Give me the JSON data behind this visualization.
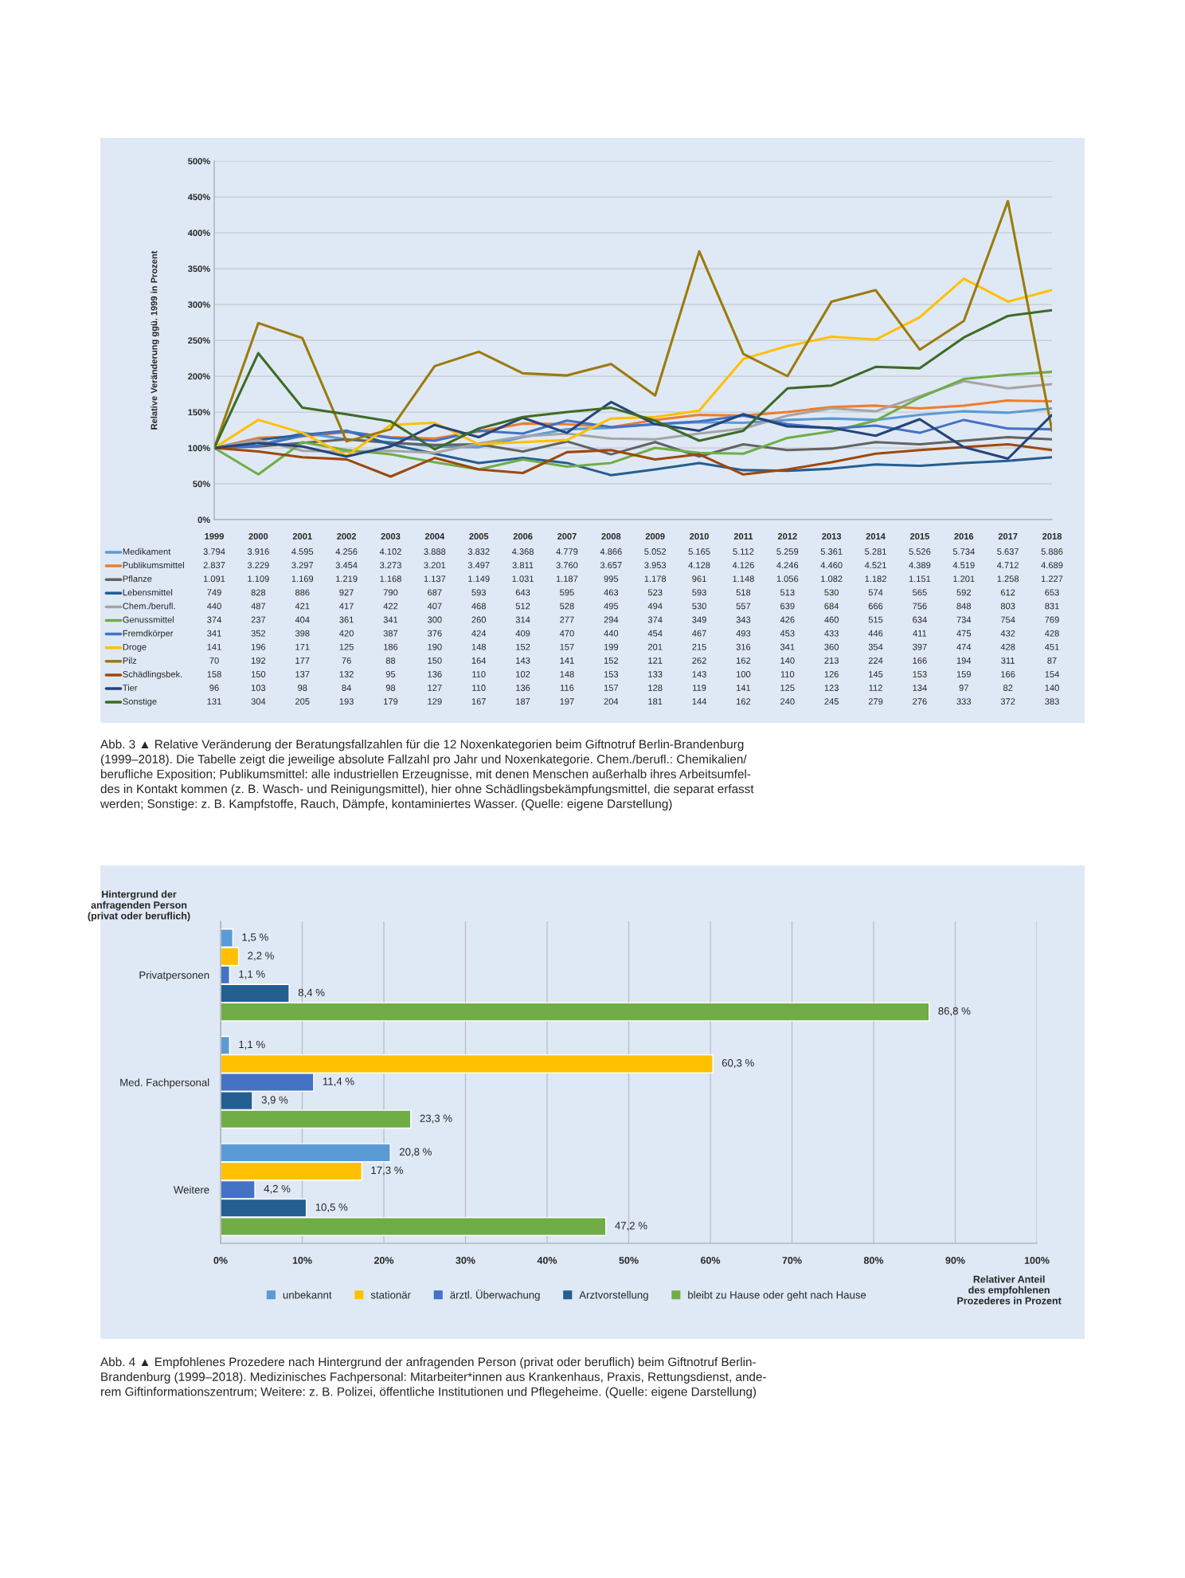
{
  "chart_data": [
    {
      "type": "line",
      "ylabel": "Relative Veränderung ggü. 1999 in Prozent",
      "categories": [
        "1999",
        "2000",
        "2001",
        "2002",
        "2003",
        "2004",
        "2005",
        "2006",
        "2007",
        "2008",
        "2009",
        "2010",
        "2011",
        "2012",
        "2013",
        "2014",
        "2015",
        "2016",
        "2017",
        "2018"
      ],
      "ylim": [
        0,
        500
      ],
      "yticks": [
        {
          "value": 0,
          "label": "0%"
        },
        {
          "value": 50,
          "label": "50%"
        },
        {
          "value": 100,
          "label": "100%"
        },
        {
          "value": 150,
          "label": "150%"
        },
        {
          "value": 200,
          "label": "200%"
        },
        {
          "value": 250,
          "label": "250%"
        },
        {
          "value": 300,
          "label": "300%"
        },
        {
          "value": 350,
          "label": "350%"
        },
        {
          "value": 400,
          "label": "400%"
        },
        {
          "value": 450,
          "label": "450%"
        },
        {
          "value": 500,
          "label": "500%"
        }
      ],
      "grid": "y",
      "legend": "bottom left",
      "series": [
        {
          "name": "Medikament",
          "color": "#5b9bd5",
          "values": [
            100,
            103,
            121,
            112,
            108,
            102,
            101,
            115,
            126,
            128,
            133,
            136,
            135,
            139,
            141,
            139,
            146,
            151,
            149,
            155
          ]
        },
        {
          "name": "Publikumsmittel",
          "color": "#ed7d31",
          "values": [
            100,
            114,
            116,
            122,
            115,
            113,
            123,
            134,
            133,
            129,
            139,
            146,
            145,
            150,
            157,
            159,
            155,
            159,
            166,
            165
          ]
        },
        {
          "name": "Pflanze",
          "color": "#636363",
          "values": [
            100,
            102,
            107,
            112,
            107,
            104,
            105,
            95,
            109,
            91,
            108,
            88,
            105,
            97,
            99,
            108,
            105,
            110,
            115,
            112
          ]
        },
        {
          "name": "Lebensmittel",
          "color": "#255e91",
          "values": [
            100,
            111,
            118,
            124,
            105,
            92,
            79,
            86,
            79,
            62,
            70,
            79,
            69,
            68,
            71,
            77,
            75,
            79,
            82,
            87
          ]
        },
        {
          "name": "Chem./berufl.",
          "color": "#a5a5a5",
          "values": [
            100,
            111,
            96,
            95,
            96,
            93,
            106,
            116,
            120,
            113,
            112,
            120,
            127,
            145,
            155,
            151,
            172,
            193,
            183,
            189
          ]
        },
        {
          "name": "Genussmittel",
          "color": "#70ad47",
          "values": [
            100,
            63,
            108,
            97,
            91,
            80,
            70,
            84,
            74,
            79,
            100,
            93,
            92,
            114,
            123,
            138,
            170,
            196,
            202,
            206
          ]
        },
        {
          "name": "Fremdkörper",
          "color": "#4472c4",
          "values": [
            100,
            103,
            117,
            123,
            114,
            110,
            124,
            120,
            138,
            129,
            133,
            137,
            145,
            133,
            127,
            131,
            121,
            139,
            127,
            126
          ]
        },
        {
          "name": "Droge",
          "color": "#ffc000",
          "values": [
            100,
            139,
            121,
            89,
            132,
            135,
            105,
            108,
            111,
            141,
            143,
            152,
            224,
            242,
            255,
            251,
            282,
            336,
            304,
            320
          ]
        },
        {
          "name": "Pilz",
          "color": "#9c7a0c",
          "values": [
            100,
            274,
            253,
            109,
            126,
            214,
            234,
            204,
            201,
            217,
            173,
            374,
            231,
            200,
            304,
            320,
            237,
            277,
            444,
            124
          ]
        },
        {
          "name": "Schädlingsbek.",
          "color": "#9e480e",
          "values": [
            100,
            95,
            87,
            84,
            60,
            86,
            70,
            65,
            94,
            97,
            84,
            91,
            63,
            70,
            80,
            92,
            97,
            101,
            105,
            97
          ]
        },
        {
          "name": "Tier",
          "color": "#264478",
          "values": [
            100,
            107,
            102,
            88,
            102,
            132,
            115,
            142,
            121,
            164,
            133,
            124,
            147,
            130,
            128,
            117,
            140,
            101,
            85,
            146
          ]
        },
        {
          "name": "Sonstige",
          "color": "#3d6b27",
          "values": [
            100,
            232,
            156,
            147,
            137,
            98,
            127,
            143,
            150,
            156,
            138,
            110,
            124,
            183,
            187,
            213,
            211,
            254,
            284,
            292
          ]
        }
      ],
      "annotations": [
        "3.794",
        "3.916",
        "4.595",
        "4.256",
        "4.102",
        "3.888",
        "3.832",
        "4.368",
        "4.779",
        "4.866",
        "5.052",
        "5.165",
        "5.112",
        "5.259",
        "5.361",
        "5.281",
        "5.526",
        "5.734",
        "5.637",
        "5.886",
        "2.837",
        "3.229",
        "3.297",
        "3.454",
        "3.273",
        "3.201",
        "3.497",
        "3.811",
        "3.760",
        "3.657",
        "3.953",
        "4.128",
        "4.126",
        "4.246",
        "4.460",
        "4.521",
        "4.389",
        "4.519",
        "4.712",
        "4.689",
        "1.091",
        "1.109",
        "1.169",
        "1.219",
        "1.168",
        "1.137",
        "1.149",
        "1.031",
        "1.187",
        "995",
        "1.178",
        "961",
        "1.148",
        "1.056",
        "1.082",
        "1.182",
        "1.151",
        "1.201",
        "1.258",
        "1.227",
        "749",
        "828",
        "886",
        "927",
        "790",
        "687",
        "593",
        "643",
        "595",
        "463",
        "523",
        "593",
        "518",
        "513",
        "530",
        "574",
        "565",
        "592",
        "612",
        "653",
        "440",
        "487",
        "421",
        "417",
        "422",
        "407",
        "468",
        "512",
        "528",
        "495",
        "494",
        "530",
        "557",
        "639",
        "684",
        "666",
        "756",
        "848",
        "803",
        "831",
        "374",
        "237",
        "404",
        "361",
        "341",
        "300",
        "260",
        "314",
        "277",
        "294",
        "374",
        "349",
        "343",
        "426",
        "460",
        "515",
        "634",
        "734",
        "754",
        "769",
        "341",
        "352",
        "398",
        "420",
        "387",
        "376",
        "424",
        "409",
        "470",
        "440",
        "454",
        "467",
        "493",
        "453",
        "433",
        "446",
        "411",
        "475",
        "432",
        "428",
        "141",
        "196",
        "171",
        "125",
        "186",
        "190",
        "148",
        "152",
        "157",
        "199",
        "201",
        "215",
        "316",
        "341",
        "360",
        "354",
        "397",
        "474",
        "428",
        "451",
        "70",
        "192",
        "177",
        "76",
        "88",
        "150",
        "164",
        "143",
        "141",
        "152",
        "121",
        "262",
        "162",
        "140",
        "213",
        "224",
        "166",
        "194",
        "311",
        "87",
        "158",
        "150",
        "137",
        "132",
        "95",
        "136",
        "110",
        "102",
        "148",
        "153",
        "133",
        "143",
        "100",
        "110",
        "126",
        "145",
        "153",
        "159",
        "166",
        "154",
        "96",
        "103",
        "98",
        "84",
        "98",
        "127",
        "110",
        "136",
        "116",
        "157",
        "128",
        "119",
        "141",
        "125",
        "123",
        "112",
        "134",
        "97",
        "82",
        "140",
        "131",
        "304",
        "205",
        "193",
        "179",
        "129",
        "167",
        "187",
        "197",
        "204",
        "181",
        "144",
        "162",
        "240",
        "245",
        "279",
        "276",
        "333",
        "372",
        "383",
        "Abb. 3 ▲ Relative Veränderung der Beratungsfallzahlen für die 12 Noxenkategorien beim Giftnotruf Berlin-Brandenburg\n(1999–2018). Die Tabelle zeigt die jeweilige absolute Fallzahl pro Jahr und Noxenkategorie. Chem./berufl.: Chemikalien/\nberufliche Exposition; Publikumsmittel: alle industriellen Erzeugnisse, mit denen Menschen außerhalb ihres Arbeitsumfel-\ndes in Kontakt kommen (z. B. Wasch- und Reinigungsmittel), hier ohne Schädlingsbekämpfungsmittel, die separat erfasst\nwerden; Sonstige: z. B. Kampfstoffe, Rauch, Dämpfe, kontaminiertes Wasser. (Quelle: eigene Darstellung)"
      ]
    },
    {
      "type": "bar",
      "orientation": "horizontal",
      "ylabel": "Hintergrund der\nanfragenden Person\n(privat oder beruflich)",
      "xlabel": "Relativer Anteil\ndes empfohlenen\nProzederes in Prozent",
      "categories": [
        "Privatpersonen",
        "Med. Fachpersonal",
        "Weitere"
      ],
      "xlim": [
        0,
        100
      ],
      "xticks": [
        {
          "value": 0,
          "label": "0%"
        },
        {
          "value": 10,
          "label": "10%"
        },
        {
          "value": 20,
          "label": "20%"
        },
        {
          "value": 30,
          "label": "30%"
        },
        {
          "value": 40,
          "label": "40%"
        },
        {
          "value": 50,
          "label": "50%"
        },
        {
          "value": 60,
          "label": "60%"
        },
        {
          "value": 70,
          "label": "70%"
        },
        {
          "value": 80,
          "label": "80%"
        },
        {
          "value": 90,
          "label": "90%"
        },
        {
          "value": 100,
          "label": "100%"
        }
      ],
      "grid": "x",
      "legend": "bottom",
      "series": [
        {
          "name": "unbekannt",
          "color": "#5b9bd5",
          "values": [
            1.5,
            1.1,
            20.8
          ],
          "value_labels": [
            "1,5 %",
            "1,1 %",
            "20,8 %"
          ]
        },
        {
          "name": "stationär",
          "color": "#ffc000",
          "values": [
            2.2,
            60.3,
            17.3
          ],
          "value_labels": [
            "2,2 %",
            "60,3 %",
            "17,3 %"
          ]
        },
        {
          "name": "ärztl. Überwachung",
          "color": "#4472c4",
          "values": [
            1.1,
            11.4,
            4.2
          ],
          "value_labels": [
            "1,1 %",
            "11,4 %",
            "4,2 %"
          ]
        },
        {
          "name": "Arztvorstellung",
          "color": "#255e91",
          "values": [
            8.4,
            3.9,
            10.5
          ],
          "value_labels": [
            "8,4 %",
            "3,9 %",
            "10,5 %"
          ]
        },
        {
          "name": "bleibt zu Hause oder geht nach Hause",
          "color": "#70ad47",
          "values": [
            86.8,
            23.3,
            47.2
          ],
          "value_labels": [
            "86,8 %",
            "23,3 %",
            "47,2 %"
          ]
        }
      ],
      "annotations": [
        "Abb. 4 ▲ Empfohlenes Prozedere nach Hintergrund der anfragenden Person (privat oder beruflich) beim Giftnotruf Berlin-\nBrandenburg (1999–2018). Medizinisches Fachpersonal: Mitarbeiter*innen aus Krankenhaus, Praxis, Rettungsdienst, ande-\nrem Giftinformationszentrum; Weitere: z. B. Polizei, öffentliche Institutionen und Pflegeheime. (Quelle: eigene Darstellung)"
      ]
    }
  ]
}
